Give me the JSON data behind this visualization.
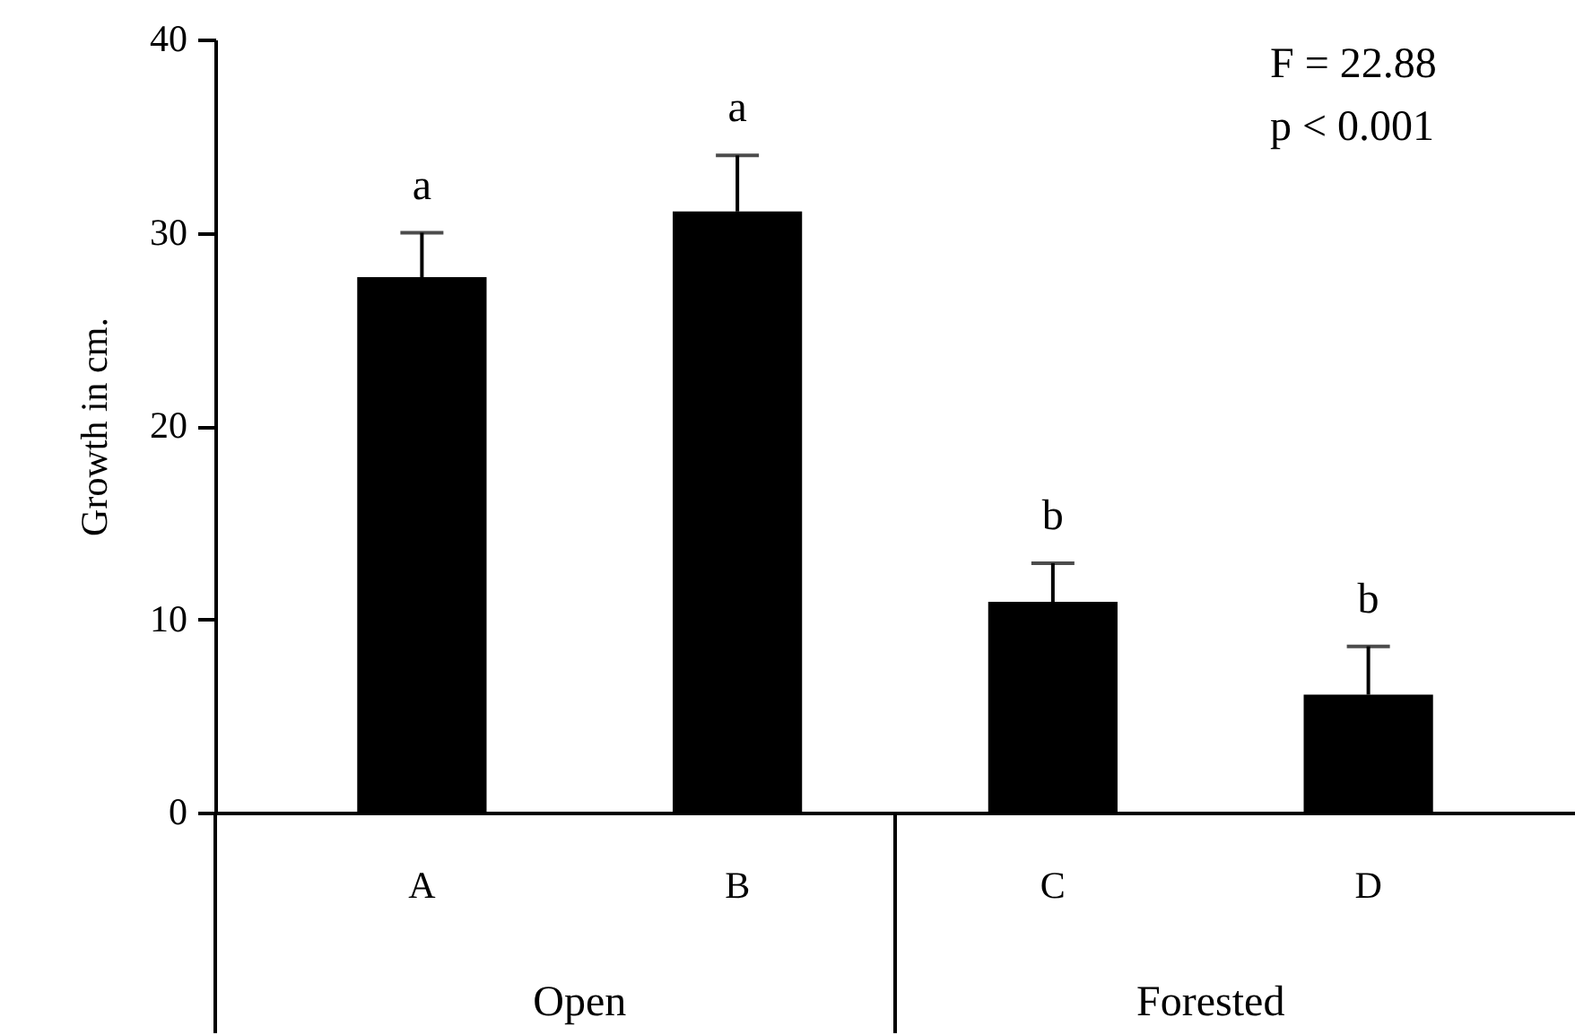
{
  "chart_data": {
    "type": "bar",
    "ylabel": "Growth in cm.",
    "categories": [
      "A",
      "B",
      "C",
      "D"
    ],
    "values": [
      27.7,
      31.1,
      10.9,
      6.1
    ],
    "color": "#000000",
    "errors": [
      [
        27.7,
        30.0
      ],
      [
        31.1,
        34.0
      ],
      [
        10.9,
        12.9
      ],
      [
        6.1,
        8.6
      ]
    ],
    "ylim": [
      0,
      40
    ],
    "yticks": [
      0,
      10,
      20,
      30,
      40
    ],
    "grid": false,
    "annotations": [
      "F = 22.88",
      "p < 0.001",
      "Open",
      "Forested",
      {
        "text": "a",
        "x": "A",
        "y": 30.0
      },
      {
        "text": "a",
        "x": "B",
        "y": 34.0
      },
      {
        "text": "b",
        "x": "C",
        "y": 12.9
      },
      {
        "text": "b",
        "x": "D",
        "y": 8.6
      }
    ]
  }
}
